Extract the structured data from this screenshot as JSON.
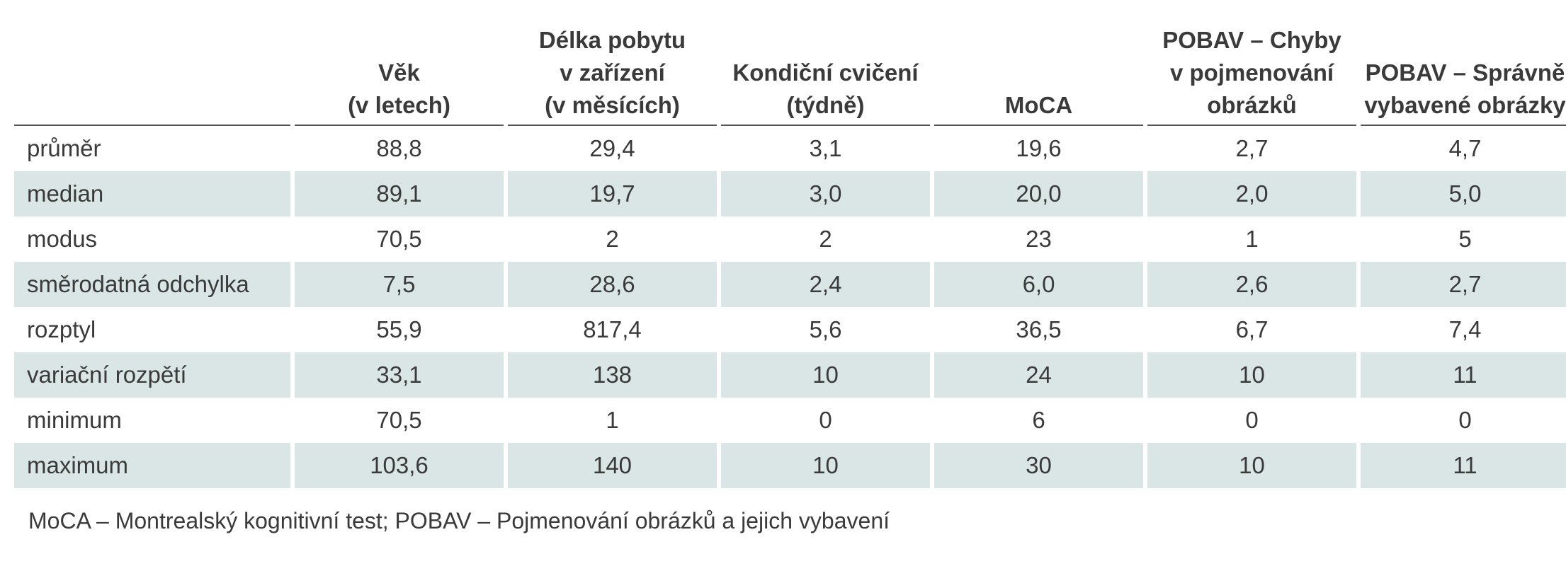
{
  "table": {
    "headers": [
      {
        "lines": [
          ""
        ]
      },
      {
        "lines": [
          "Věk",
          "(v letech)"
        ]
      },
      {
        "lines": [
          "Délka pobytu",
          "v zařízení",
          "(v měsících)"
        ]
      },
      {
        "lines": [
          "Kondiční cvičení",
          "(týdně)"
        ]
      },
      {
        "lines": [
          "MoCA"
        ]
      },
      {
        "lines": [
          "POBAV – Chyby",
          "v pojmenování",
          "obrázků"
        ]
      },
      {
        "lines": [
          "POBAV – Správně",
          "vybavené obrázky"
        ]
      }
    ],
    "rows": [
      {
        "label": "průměr",
        "values": [
          "88,8",
          "29,4",
          "3,1",
          "19,6",
          "2,7",
          "4,7"
        ]
      },
      {
        "label": "median",
        "values": [
          "89,1",
          "19,7",
          "3,0",
          "20,0",
          "2,0",
          "5,0"
        ]
      },
      {
        "label": "modus",
        "values": [
          "70,5",
          "2",
          "2",
          "23",
          "1",
          "5"
        ]
      },
      {
        "label": "směrodatná odchylka",
        "values": [
          "7,5",
          "28,6",
          "2,4",
          "6,0",
          "2,6",
          "2,7"
        ]
      },
      {
        "label": "rozptyl",
        "values": [
          "55,9",
          "817,4",
          "5,6",
          "36,5",
          "6,7",
          "7,4"
        ]
      },
      {
        "label": "variační rozpětí",
        "values": [
          "33,1",
          "138",
          "10",
          "24",
          "10",
          "11"
        ]
      },
      {
        "label": "minimum",
        "values": [
          "70,5",
          "1",
          "0",
          "6",
          "0",
          "0"
        ]
      },
      {
        "label": "maximum",
        "values": [
          "103,6",
          "140",
          "10",
          "30",
          "10",
          "11"
        ]
      }
    ],
    "shaded_color": "#dae6e5"
  },
  "footnote": "MoCA – Montrealský kognitivní test; POBAV – Pojmenování obrázků a jejich vybavení"
}
